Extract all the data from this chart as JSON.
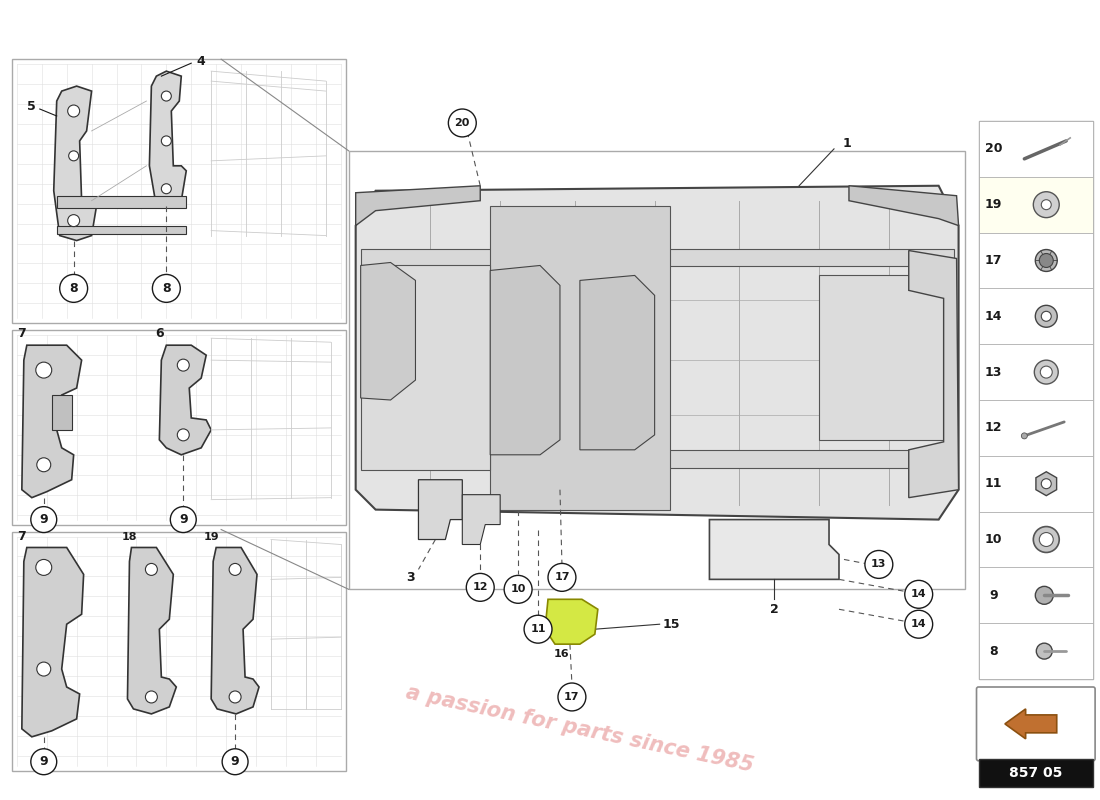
{
  "background_color": "#ffffff",
  "fig_width": 11.0,
  "fig_height": 8.0,
  "watermark_text": "a passion for parts since 1985",
  "watermark_color": "#cc2222",
  "watermark_alpha": 0.3,
  "diagram_code": "857 05",
  "right_panel_items": [
    {
      "num": "20",
      "type": "bolt_long"
    },
    {
      "num": "19",
      "type": "washer_ring"
    },
    {
      "num": "17",
      "type": "clip_push"
    },
    {
      "num": "14",
      "type": "bolt_hex"
    },
    {
      "num": "13",
      "type": "nut_nylon"
    },
    {
      "num": "12",
      "type": "bolt_long2"
    },
    {
      "num": "11",
      "type": "nut_hex_lock"
    },
    {
      "num": "10",
      "type": "washer_thick"
    },
    {
      "num": "9",
      "type": "bolt_round"
    },
    {
      "num": "8",
      "type": "bolt_socket"
    }
  ],
  "line_color": "#1a1a1a",
  "part_fill": "#e8e8e8",
  "part_stroke": "#444444",
  "sub_bg": "#f0f0f0",
  "main_bg": "#f4f4f4",
  "right_bg": "#ffffff",
  "highlight_row": 1,
  "highlight_color": "#fffff0"
}
